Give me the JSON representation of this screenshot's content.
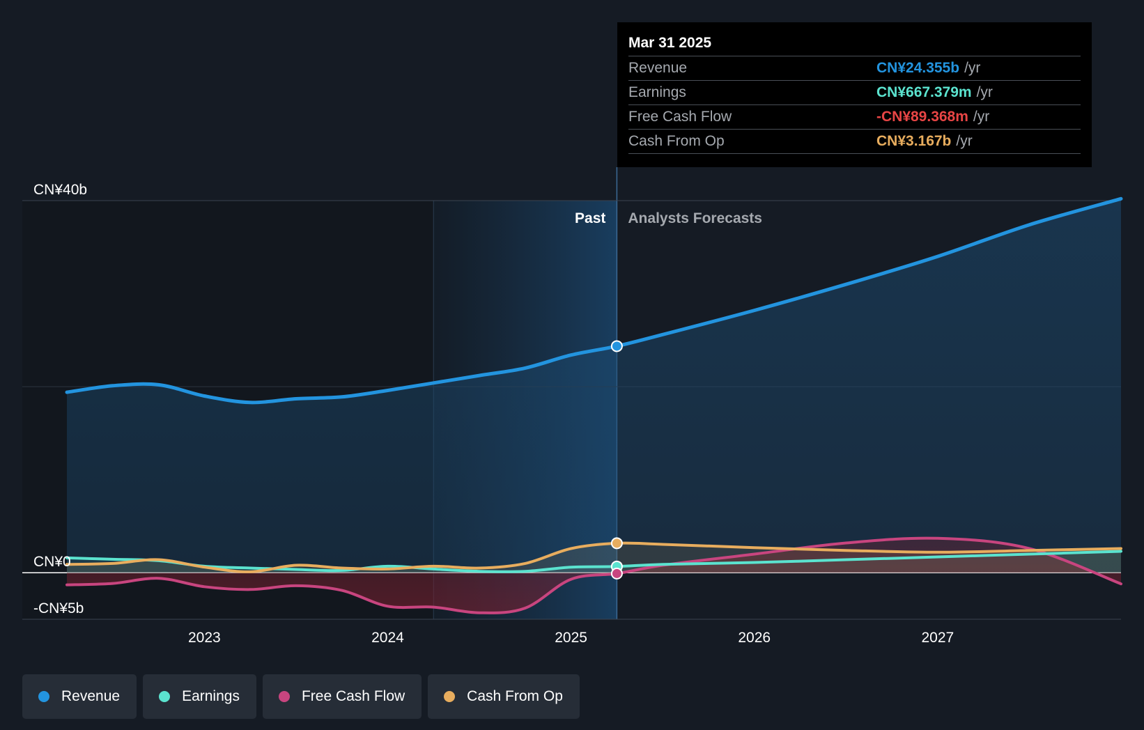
{
  "colors": {
    "background": "#151b24",
    "revenue": "#2394df",
    "earnings": "#5be3cf",
    "free_cash_flow": "#c8457f",
    "cash_from_op": "#e8ad5e",
    "negative_value": "#e84545"
  },
  "tooltip": {
    "date": "Mar 31 2025",
    "rows": [
      {
        "label": "Revenue",
        "value": "CN¥24.355b",
        "unit": "/yr",
        "color": "#2394df"
      },
      {
        "label": "Earnings",
        "value": "CN¥667.379m",
        "unit": "/yr",
        "color": "#5be3cf"
      },
      {
        "label": "Free Cash Flow",
        "value": "-CN¥89.368m",
        "unit": "/yr",
        "color": "#e84545"
      },
      {
        "label": "Cash From Op",
        "value": "CN¥3.167b",
        "unit": "/yr",
        "color": "#e8ad5e"
      }
    ]
  },
  "legend": [
    {
      "label": "Revenue",
      "color": "#2394df",
      "icon": "revenue-dot-icon"
    },
    {
      "label": "Earnings",
      "color": "#5be3cf",
      "icon": "earnings-dot-icon"
    },
    {
      "label": "Free Cash Flow",
      "color": "#c8457f",
      "icon": "free-cash-flow-dot-icon"
    },
    {
      "label": "Cash From Op",
      "color": "#e8ad5e",
      "icon": "cash-from-op-dot-icon"
    }
  ],
  "chart_data": {
    "type": "line",
    "past_label": "Past",
    "forecast_label": "Analysts Forecasts",
    "divider_date": 2025.25,
    "ylim": [
      -5,
      40
    ],
    "xlim": [
      2022.0,
      2028.0
    ],
    "grid": true,
    "y_tick_labels": [
      {
        "value": 40,
        "label": "CN¥40b"
      },
      {
        "value": 0,
        "label": "CN¥0"
      },
      {
        "value": -5,
        "label": "-CN¥5b"
      }
    ],
    "x_tick_labels": [
      {
        "value": 2023,
        "label": "2023"
      },
      {
        "value": 2024,
        "label": "2024"
      },
      {
        "value": 2025,
        "label": "2025"
      },
      {
        "value": 2026,
        "label": "2026"
      },
      {
        "value": 2027,
        "label": "2027"
      }
    ],
    "series": [
      {
        "name": "Revenue",
        "color": "#2394df",
        "points": [
          [
            2022.25,
            19.4
          ],
          [
            2022.5,
            20.1
          ],
          [
            2022.75,
            20.2
          ],
          [
            2023.0,
            19.0
          ],
          [
            2023.25,
            18.3
          ],
          [
            2023.5,
            18.7
          ],
          [
            2023.75,
            18.9
          ],
          [
            2024.0,
            19.6
          ],
          [
            2024.25,
            20.4
          ],
          [
            2024.5,
            21.2
          ],
          [
            2024.75,
            22.0
          ],
          [
            2025.0,
            23.4
          ],
          [
            2025.25,
            24.355
          ],
          [
            2025.5,
            25.6
          ],
          [
            2026.0,
            28.2
          ],
          [
            2026.5,
            31.0
          ],
          [
            2027.0,
            34.0
          ],
          [
            2027.5,
            37.4
          ],
          [
            2028.0,
            40.2
          ]
        ]
      },
      {
        "name": "Earnings",
        "color": "#5be3cf",
        "points": [
          [
            2022.25,
            1.6
          ],
          [
            2022.5,
            1.45
          ],
          [
            2022.75,
            1.3
          ],
          [
            2023.0,
            0.7
          ],
          [
            2023.25,
            0.5
          ],
          [
            2023.5,
            0.35
          ],
          [
            2023.75,
            0.25
          ],
          [
            2024.0,
            0.7
          ],
          [
            2024.25,
            0.4
          ],
          [
            2024.5,
            0.15
          ],
          [
            2024.75,
            0.15
          ],
          [
            2025.0,
            0.6
          ],
          [
            2025.25,
            0.667
          ],
          [
            2025.5,
            0.9
          ],
          [
            2026.0,
            1.1
          ],
          [
            2026.5,
            1.4
          ],
          [
            2027.0,
            1.7
          ],
          [
            2027.5,
            2.0
          ],
          [
            2028.0,
            2.3
          ]
        ]
      },
      {
        "name": "Free Cash Flow",
        "color": "#c8457f",
        "points": [
          [
            2022.25,
            -1.3
          ],
          [
            2022.5,
            -1.15
          ],
          [
            2022.75,
            -0.6
          ],
          [
            2023.0,
            -1.5
          ],
          [
            2023.25,
            -1.8
          ],
          [
            2023.5,
            -1.4
          ],
          [
            2023.75,
            -1.9
          ],
          [
            2024.0,
            -3.6
          ],
          [
            2024.25,
            -3.7
          ],
          [
            2024.5,
            -4.3
          ],
          [
            2024.75,
            -3.8
          ],
          [
            2025.0,
            -0.7
          ],
          [
            2025.25,
            -0.089
          ],
          [
            2025.5,
            0.8
          ],
          [
            2026.0,
            2.0
          ],
          [
            2026.5,
            3.2
          ],
          [
            2027.0,
            3.7
          ],
          [
            2027.5,
            2.6
          ],
          [
            2028.0,
            -1.2
          ]
        ]
      },
      {
        "name": "Cash From Op",
        "color": "#e8ad5e",
        "points": [
          [
            2022.25,
            0.9
          ],
          [
            2022.5,
            1.0
          ],
          [
            2022.75,
            1.4
          ],
          [
            2023.0,
            0.6
          ],
          [
            2023.25,
            0.1
          ],
          [
            2023.5,
            0.8
          ],
          [
            2023.75,
            0.5
          ],
          [
            2024.0,
            0.4
          ],
          [
            2024.25,
            0.7
          ],
          [
            2024.5,
            0.5
          ],
          [
            2024.75,
            1.0
          ],
          [
            2025.0,
            2.6
          ],
          [
            2025.25,
            3.167
          ],
          [
            2025.5,
            3.05
          ],
          [
            2026.0,
            2.7
          ],
          [
            2026.5,
            2.4
          ],
          [
            2027.0,
            2.2
          ],
          [
            2027.5,
            2.4
          ],
          [
            2028.0,
            2.6
          ]
        ]
      }
    ],
    "highlight_date": 2025.25
  }
}
